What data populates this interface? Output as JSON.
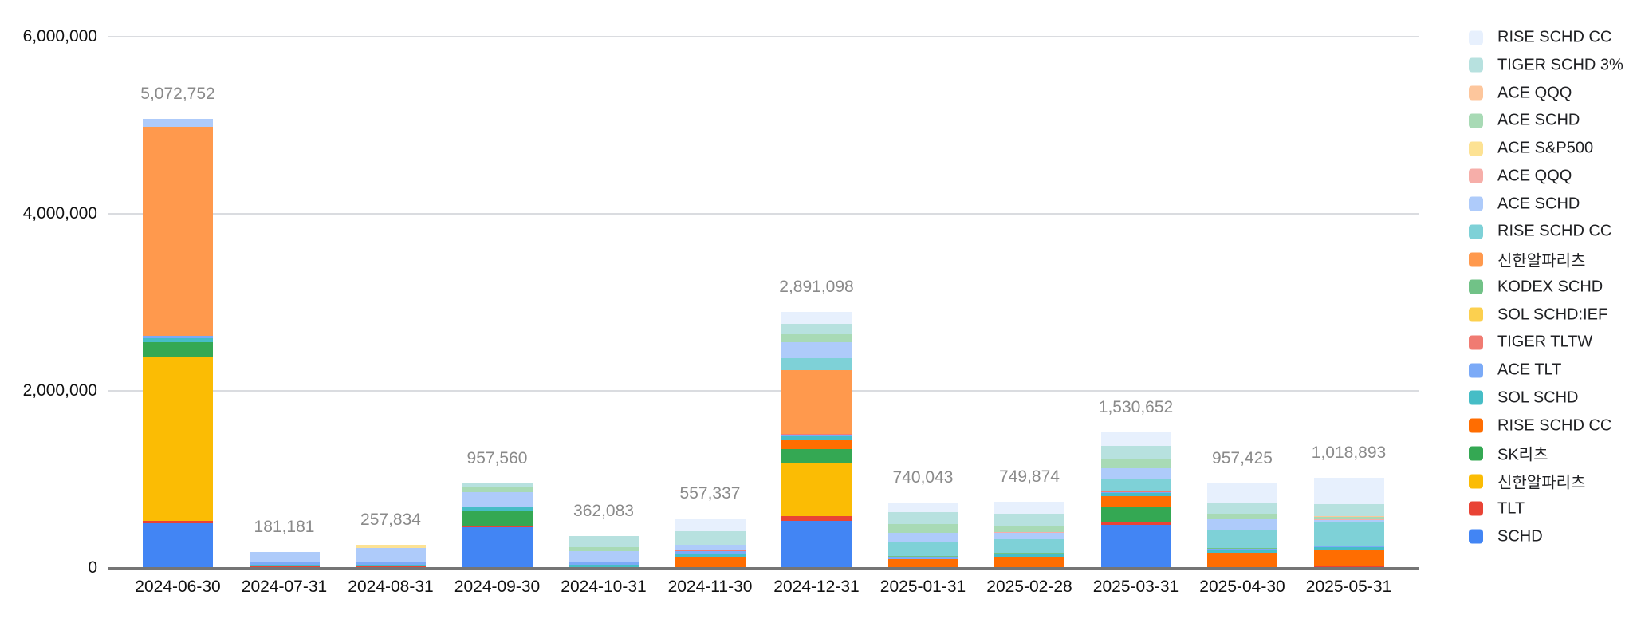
{
  "chart_data": {
    "type": "bar",
    "stacked": true,
    "legend_position": "right",
    "grid": true,
    "categories": [
      "2024-06-30",
      "2024-07-31",
      "2024-08-31",
      "2024-09-30",
      "2024-10-31",
      "2024-11-30",
      "2024-12-31",
      "2025-01-31",
      "2025-02-28",
      "2025-03-31",
      "2025-04-30",
      "2025-05-31"
    ],
    "totals": [
      5072752,
      181181,
      257834,
      957560,
      362083,
      557337,
      2891098,
      740043,
      749874,
      1530652,
      957425,
      1018893
    ],
    "totals_formatted": [
      "5,072,752",
      "181,181",
      "257,834",
      "957,560",
      "362,083",
      "557,337",
      "2,891,098",
      "740,043",
      "749,874",
      "1,530,652",
      "957,425",
      "1,018,893"
    ],
    "y_axis": {
      "min": 0,
      "max": 6000000,
      "tick_values": [
        0,
        2000000,
        4000000,
        6000000
      ],
      "tick_labels": [
        "0",
        "2,000,000",
        "4,000,000",
        "6,000,000"
      ]
    },
    "series": [
      {
        "name": "SCHD",
        "color": "#4285F4",
        "values": [
          505000,
          0,
          0,
          455000,
          0,
          0,
          530000,
          0,
          0,
          490000,
          0,
          0
        ]
      },
      {
        "name": "TLT",
        "color": "#E94335",
        "values": [
          25000,
          14000,
          14000,
          25000,
          13000,
          0,
          60000,
          0,
          12000,
          20000,
          8000,
          20000
        ]
      },
      {
        "name": "신한알파리츠",
        "color": "#FBBC04",
        "values": [
          1860000,
          0,
          0,
          0,
          0,
          0,
          600000,
          0,
          0,
          0,
          0,
          0
        ]
      },
      {
        "name": "SK리츠",
        "color": "#34A853",
        "values": [
          162000,
          0,
          0,
          170000,
          0,
          0,
          150000,
          0,
          0,
          180000,
          0,
          0
        ]
      },
      {
        "name": "RISE SCHD CC",
        "color": "#FF6D01",
        "values": [
          0,
          0,
          0,
          0,
          0,
          125000,
          105000,
          100000,
          110000,
          120000,
          165000,
          190000
        ]
      },
      {
        "name": "SOL SCHD",
        "color": "#46BDC6",
        "values": [
          45000,
          26000,
          26000,
          35000,
          26000,
          40000,
          40000,
          0,
          30000,
          35000,
          25000,
          20000
        ]
      },
      {
        "name": "ACE TLT",
        "color": "#7BAAF7",
        "values": [
          28000,
          21181,
          22000,
          0,
          20000,
          22000,
          18000,
          28000,
          15000,
          12000,
          15000,
          15000
        ]
      },
      {
        "name": "TIGER TLTW",
        "color": "#F07B72",
        "values": [
          0,
          0,
          0,
          12000,
          0,
          9000,
          10000,
          0,
          0,
          10000,
          0,
          0
        ]
      },
      {
        "name": "SOL SCHD:IEF",
        "color": "#FCD04F",
        "values": [
          0,
          0,
          0,
          0,
          0,
          0,
          0,
          0,
          0,
          0,
          0,
          0
        ]
      },
      {
        "name": "KODEX SCHD",
        "color": "#71C287",
        "values": [
          0,
          0,
          0,
          0,
          0,
          0,
          0,
          10000,
          8000,
          0,
          8000,
          8000
        ]
      },
      {
        "name": "신한알파리츠",
        "color": "#FF994D",
        "values": [
          2356000,
          0,
          0,
          0,
          0,
          0,
          720000,
          0,
          0,
          0,
          0,
          0
        ]
      },
      {
        "name": "RISE SCHD CC",
        "color": "#7ED1D7",
        "values": [
          0,
          0,
          0,
          0,
          0,
          0,
          135000,
          150000,
          150000,
          130000,
          210000,
          260000
        ]
      },
      {
        "name": "ACE SCHD",
        "color": "#AECBFA",
        "values": [
          91752,
          120000,
          160834,
          155000,
          130000,
          65000,
          180000,
          110000,
          70000,
          130000,
          120000,
          25000
        ]
      },
      {
        "name": "ACE QQQ",
        "color": "#F6AEA9",
        "values": [
          0,
          0,
          0,
          0,
          0,
          0,
          0,
          0,
          12000,
          0,
          0,
          18000
        ]
      },
      {
        "name": "ACE S&P500",
        "color": "#FDE293",
        "values": [
          0,
          0,
          35000,
          0,
          0,
          0,
          0,
          0,
          0,
          0,
          0,
          0
        ]
      },
      {
        "name": "ACE SCHD",
        "color": "#A8DAB5",
        "values": [
          0,
          0,
          0,
          60560,
          48000,
          0,
          90000,
          95000,
          60000,
          110000,
          60000,
          20000
        ]
      },
      {
        "name": "ACE QQQ",
        "color": "#FDC69C",
        "values": [
          0,
          0,
          0,
          0,
          0,
          0,
          0,
          0,
          12000,
          0,
          0,
          12000
        ]
      },
      {
        "name": "TIGER SCHD 3%",
        "color": "#B7E1DF",
        "values": [
          0,
          0,
          0,
          45000,
          125083,
          150000,
          115000,
          140000,
          130000,
          140000,
          130000,
          130000
        ]
      },
      {
        "name": "RISE SCHD CC",
        "color": "#E7F0FD",
        "values": [
          0,
          0,
          0,
          0,
          0,
          146337,
          138098,
          107043,
          140874,
          153652,
          216425,
          300893
        ]
      }
    ],
    "legend_items_top_to_bottom": [
      "RISE SCHD CC",
      "TIGER SCHD 3%",
      "ACE QQQ",
      "ACE SCHD",
      "ACE S&P500",
      "ACE QQQ",
      "ACE SCHD",
      "RISE SCHD CC",
      "신한알파리츠",
      "KODEX SCHD",
      "SOL SCHD:IEF",
      "TIGER TLTW",
      "ACE TLT",
      "SOL SCHD",
      "RISE SCHD CC",
      "SK리츠",
      "신한알파리츠",
      "TLT",
      "SCHD"
    ]
  }
}
